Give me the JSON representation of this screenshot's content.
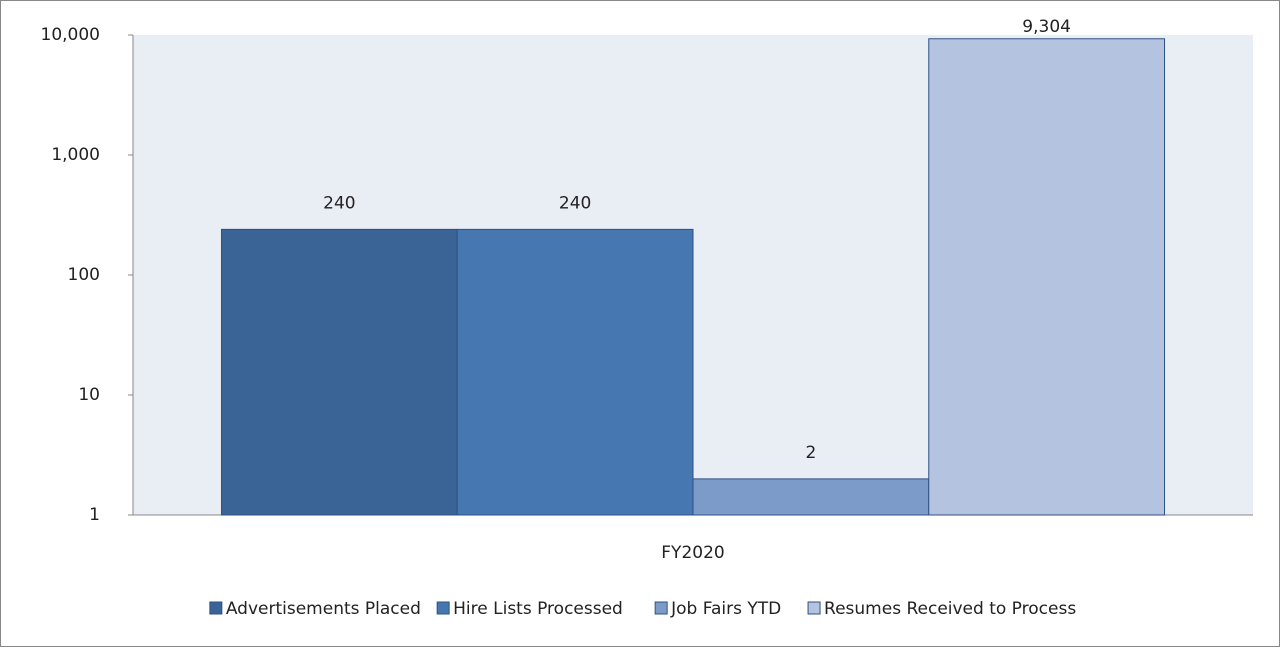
{
  "chart_data": {
    "type": "bar",
    "categories": [
      "FY2020"
    ],
    "series": [
      {
        "name": "Advertisements Placed",
        "color": "#3b6496",
        "values": [
          240
        ]
      },
      {
        "name": "Hire Lists Processed",
        "color": "#4677b0",
        "values": [
          240
        ]
      },
      {
        "name": "Job Fairs YTD",
        "color": "#7d9bc8",
        "values": [
          2
        ]
      },
      {
        "name": "Resumes Received to Process",
        "color": "#b4c3df",
        "values": [
          9304
        ],
        "value_labels": [
          "9,304"
        ]
      }
    ],
    "log_scale": true,
    "ylim": [
      1,
      10000
    ],
    "yticks": [
      1,
      10,
      100,
      {
        "value": 1000,
        "label": "1,000"
      },
      {
        "value": 10000,
        "label": "10,000"
      }
    ],
    "legend": "bottom"
  }
}
